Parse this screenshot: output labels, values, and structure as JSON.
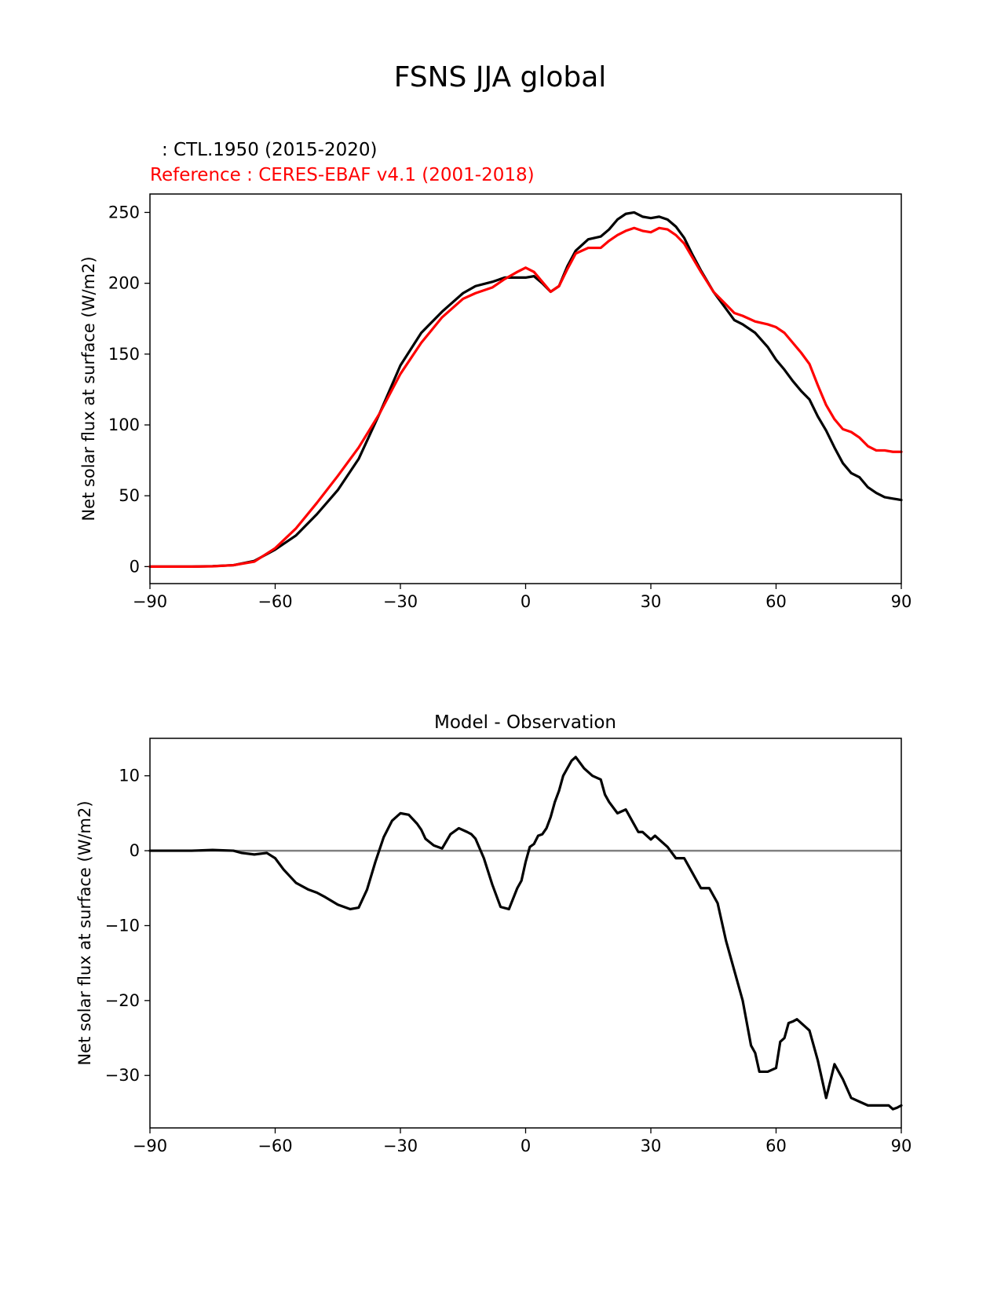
{
  "figure_title": "FSNS JJA global",
  "chart_data": [
    {
      "type": "line",
      "test_label": ": CTL.1950 (2015-2020)",
      "reference_label": "Reference : CERES-EBAF v4.1 (2001-2018)",
      "xlabel": "",
      "ylabel": "Net solar flux at surface (W/m2)",
      "xlim": [
        -90,
        90
      ],
      "ylim": [
        -12,
        263
      ],
      "xticks": [
        -90,
        -60,
        -30,
        0,
        30,
        60,
        90
      ],
      "xtick_labels": [
        "−90",
        "−60",
        "−30",
        "0",
        "30",
        "60",
        "90"
      ],
      "yticks": [
        0,
        50,
        100,
        150,
        200,
        250
      ],
      "ytick_labels": [
        "0",
        "50",
        "100",
        "150",
        "200",
        "250"
      ],
      "colors": {
        "test": "#000000",
        "reference": "#ff0000"
      },
      "series": [
        {
          "name": "CTL.1950 (2015-2020)",
          "color": "#000000",
          "x": [
            -90,
            -80,
            -75,
            -70,
            -65,
            -60,
            -55,
            -50,
            -45,
            -40,
            -35,
            -30,
            -25,
            -20,
            -15,
            -12,
            -8,
            -5,
            -2,
            0,
            2,
            4,
            6,
            8,
            10,
            12,
            15,
            18,
            20,
            22,
            24,
            26,
            28,
            30,
            32,
            34,
            36,
            38,
            40,
            42,
            45,
            48,
            50,
            52,
            55,
            58,
            60,
            62,
            64,
            66,
            68,
            70,
            72,
            74,
            76,
            78,
            80,
            82,
            84,
            86,
            88,
            90
          ],
          "values": [
            0,
            0,
            0.3,
            1,
            4,
            12,
            22,
            37,
            54,
            76,
            108,
            142,
            165,
            180,
            193,
            198,
            201,
            204,
            204,
            204,
            205,
            200,
            194,
            198,
            212,
            223,
            231,
            233,
            238,
            245,
            249,
            250,
            247,
            246,
            247,
            245,
            240,
            232,
            220,
            209,
            194,
            182,
            174,
            171,
            165,
            155,
            146,
            139,
            131,
            124,
            118,
            106,
            96,
            84,
            73,
            66,
            63,
            56,
            52,
            49,
            48,
            47
          ]
        },
        {
          "name": "CERES-EBAF v4.1 (2001-2018)",
          "color": "#ff0000",
          "x": [
            -90,
            -80,
            -75,
            -70,
            -65,
            -60,
            -55,
            -50,
            -45,
            -40,
            -35,
            -30,
            -25,
            -20,
            -15,
            -12,
            -8,
            -5,
            -2,
            0,
            2,
            4,
            6,
            8,
            10,
            12,
            15,
            18,
            20,
            22,
            24,
            26,
            28,
            30,
            32,
            34,
            36,
            38,
            40,
            42,
            45,
            48,
            50,
            52,
            55,
            58,
            60,
            62,
            64,
            66,
            68,
            70,
            72,
            74,
            76,
            78,
            80,
            82,
            84,
            86,
            88,
            90
          ],
          "values": [
            0,
            0,
            0.2,
            1,
            3.5,
            13,
            27,
            45,
            64,
            84,
            108,
            136,
            158,
            176,
            189,
            193,
            197,
            203,
            208,
            211,
            208,
            201,
            194,
            198,
            210,
            221,
            225,
            225,
            230,
            234,
            237,
            239,
            237,
            236,
            239,
            238,
            234,
            228,
            218,
            208,
            194,
            185,
            179,
            177,
            173,
            171,
            169,
            165,
            158,
            151,
            143,
            128,
            114,
            104,
            97,
            95,
            91,
            85,
            82,
            82,
            81,
            81
          ]
        }
      ]
    },
    {
      "type": "line",
      "title": "Model - Observation",
      "xlabel": "",
      "ylabel": "Net solar flux at surface (W/m2)",
      "xlim": [
        -90,
        90
      ],
      "ylim": [
        -37,
        15
      ],
      "xticks": [
        -90,
        -60,
        -30,
        0,
        30,
        60,
        90
      ],
      "xtick_labels": [
        "−90",
        "−60",
        "−30",
        "0",
        "30",
        "60",
        "90"
      ],
      "yticks": [
        -30,
        -20,
        -10,
        0,
        10
      ],
      "ytick_labels": [
        "−30",
        "−20",
        "−10",
        "0",
        "10"
      ],
      "zero_line_color": "#808080",
      "series": [
        {
          "name": "Model - Observation",
          "color": "#000000",
          "x": [
            -90,
            -80,
            -75,
            -70,
            -68,
            -65,
            -62,
            -60,
            -58,
            -55,
            -52,
            -50,
            -48,
            -45,
            -42,
            -40,
            -38,
            -36,
            -34,
            -32,
            -30,
            -28,
            -26,
            -25,
            -24,
            -22,
            -20,
            -18,
            -16,
            -14,
            -13,
            -12,
            -10,
            -8,
            -6,
            -4,
            -2,
            -1,
            0,
            1,
            2,
            3,
            4,
            5,
            6,
            7,
            8,
            9,
            10,
            11,
            12,
            14,
            15,
            16,
            18,
            19,
            20,
            22,
            24,
            26,
            27,
            28,
            30,
            31,
            32,
            33,
            34,
            36,
            38,
            40,
            42,
            44,
            46,
            48,
            50,
            52,
            54,
            55,
            56,
            58,
            60,
            61,
            62,
            63,
            64,
            65,
            66,
            67,
            68,
            69,
            70,
            72,
            74,
            76,
            78,
            80,
            82,
            84,
            86,
            87,
            88,
            89,
            90
          ],
          "values": [
            0,
            0,
            0.1,
            0,
            -0.3,
            -0.5,
            -0.3,
            -1,
            -2.5,
            -4.3,
            -5.2,
            -5.6,
            -6.2,
            -7.2,
            -7.8,
            -7.6,
            -5.2,
            -1.5,
            1.8,
            4.0,
            5.0,
            4.8,
            3.6,
            2.8,
            1.6,
            0.7,
            0.3,
            2.2,
            3.0,
            2.5,
            2.2,
            1.6,
            -1.0,
            -4.5,
            -7.5,
            -7.8,
            -5.0,
            -4.0,
            -1.5,
            0.5,
            0.9,
            2.0,
            2.2,
            3.0,
            4.5,
            6.5,
            8.0,
            10.0,
            11.0,
            12.0,
            12.5,
            11.0,
            10.5,
            10.0,
            9.5,
            7.5,
            6.5,
            5.0,
            5.5,
            3.5,
            2.5,
            2.5,
            1.5,
            2.0,
            1.5,
            1.0,
            0.5,
            -1.0,
            -1.0,
            -3.0,
            -5.0,
            -5.0,
            -7.0,
            -12.0,
            -16.0,
            -20.0,
            -26.0,
            -27.0,
            -29.5,
            -29.5,
            -29.0,
            -25.5,
            -25.0,
            -23.0,
            -22.8,
            -22.5,
            -23.0,
            -23.5,
            -24.0,
            -26.0,
            -28.0,
            -33.0,
            -28.5,
            -30.5,
            -33.0,
            -33.5,
            -34.0,
            -34.0,
            -34.0,
            -34.0,
            -34.5,
            -34.3,
            -34.0
          ]
        }
      ]
    }
  ]
}
